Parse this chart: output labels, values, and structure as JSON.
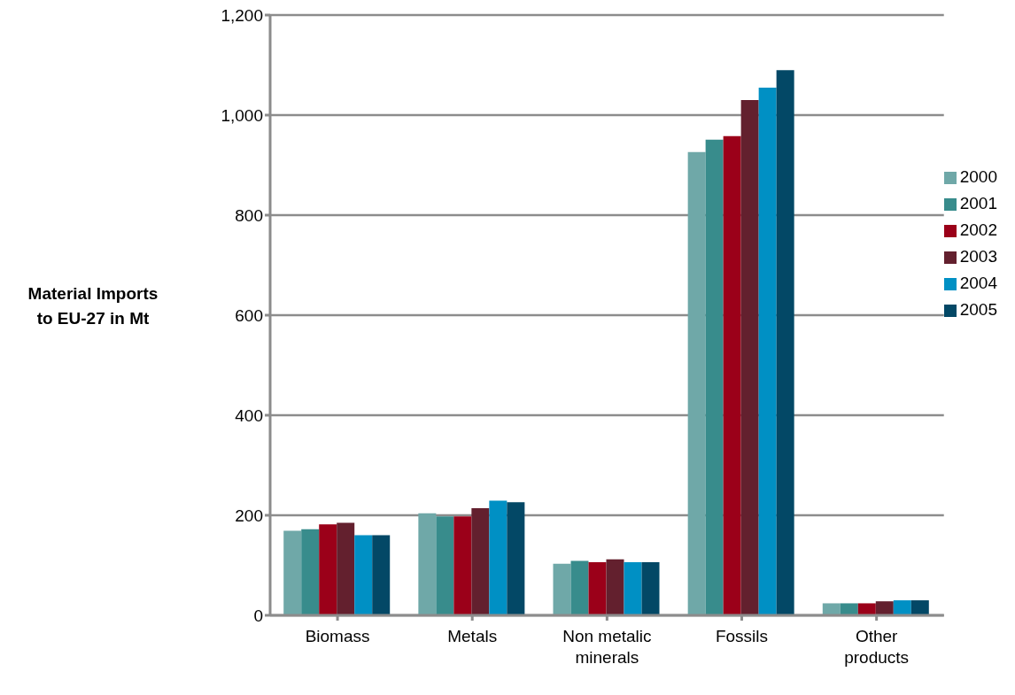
{
  "chart_data": {
    "type": "bar",
    "ylabel": "Material Imports to EU-27 in Mt",
    "categories": [
      "Biomass",
      "Metals",
      "Non metalic minerals",
      "Fossils",
      "Other products"
    ],
    "series": [
      {
        "name": "2000",
        "color": "#6fa8a8",
        "values": [
          169,
          204,
          103,
          926,
          24
        ]
      },
      {
        "name": "2001",
        "color": "#388c8c",
        "values": [
          172,
          198,
          109,
          951,
          24
        ]
      },
      {
        "name": "2002",
        "color": "#9b0019",
        "values": [
          182,
          198,
          106,
          958,
          24
        ]
      },
      {
        "name": "2003",
        "color": "#63202e",
        "values": [
          185,
          214,
          112,
          1030,
          28
        ]
      },
      {
        "name": "2004",
        "color": "#0090c4",
        "values": [
          160,
          229,
          106,
          1055,
          30
        ]
      },
      {
        "name": "2005",
        "color": "#034866",
        "values": [
          160,
          226,
          106,
          1090,
          30
        ]
      }
    ],
    "ylim": [
      0,
      1200
    ],
    "yticks": [
      0,
      200,
      400,
      600,
      800,
      {
        "value": 1000,
        "label": "1,000"
      },
      {
        "value": 1200,
        "label": "1,200"
      }
    ],
    "grid": "y",
    "legend": "right"
  }
}
